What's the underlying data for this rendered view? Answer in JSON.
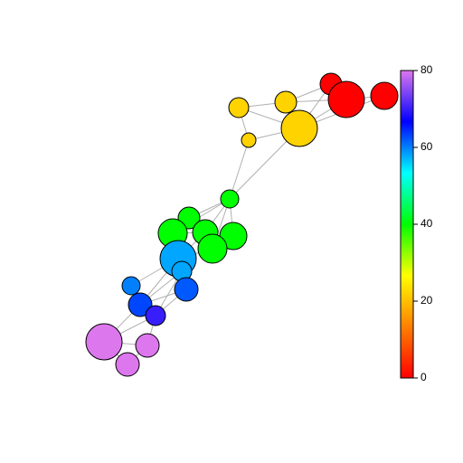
{
  "chart_data": {
    "type": "network",
    "values": [
      0,
      0,
      0,
      22,
      22,
      22,
      22,
      40,
      40,
      40,
      40,
      40,
      40,
      58,
      58,
      62,
      60,
      63,
      70,
      80,
      80,
      80
    ],
    "zlim": [
      0,
      80
    ],
    "zticks": [
      0,
      20,
      40,
      60,
      80
    ],
    "colorscale": [
      "#ff0000",
      "#ff8000",
      "#ffff00",
      "#00ff00",
      "#00ffff",
      "#0000ff",
      "#dd77ee"
    ],
    "edge_color": "#b0b0b0"
  }
}
